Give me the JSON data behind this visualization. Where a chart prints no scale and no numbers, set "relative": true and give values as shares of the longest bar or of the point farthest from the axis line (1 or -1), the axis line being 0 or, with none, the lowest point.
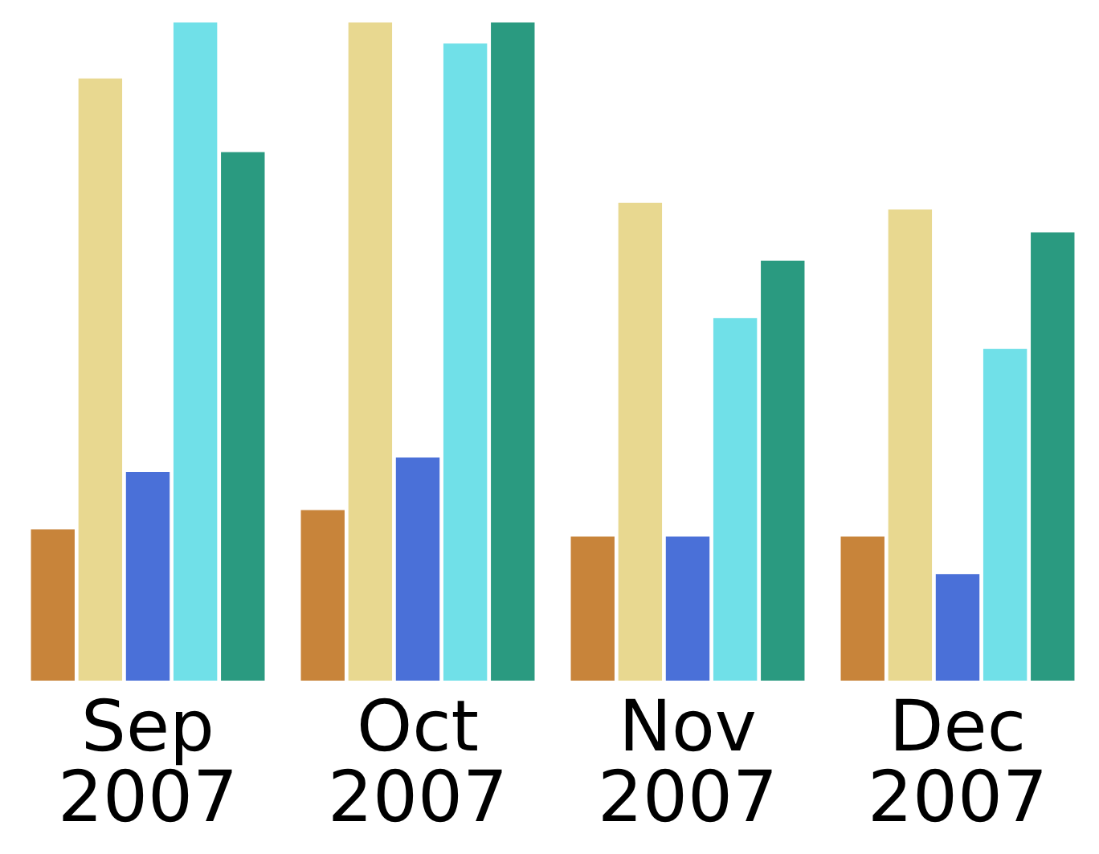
{
  "chart_data": {
    "type": "bar",
    "relative": true,
    "categories": [
      "Sep 2007",
      "Oct 2007",
      "Nov 2007",
      "Dec 2007"
    ],
    "series": [
      {
        "color": "#c8843a",
        "values": [
          0.23,
          0.259,
          0.219,
          0.219
        ]
      },
      {
        "color": "#e8d890",
        "values": [
          0.915,
          1,
          0.726,
          0.716
        ]
      },
      {
        "color": "#4a70d8",
        "values": [
          0.317,
          0.339,
          0.219,
          0.162
        ]
      },
      {
        "color": "#70e0e8",
        "values": [
          1,
          0.968,
          0.551,
          0.504
        ]
      },
      {
        "color": "#2a9a80",
        "values": [
          0.803,
          1,
          0.638,
          0.681
        ]
      }
    ],
    "grid": false,
    "legend": false
  }
}
